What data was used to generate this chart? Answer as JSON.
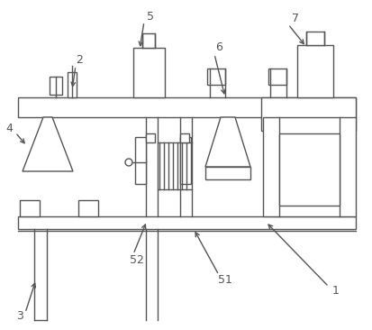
{
  "bg_color": "#ffffff",
  "line_color": "#555555",
  "lw": 1.0,
  "fig_w": 4.14,
  "fig_h": 3.66
}
